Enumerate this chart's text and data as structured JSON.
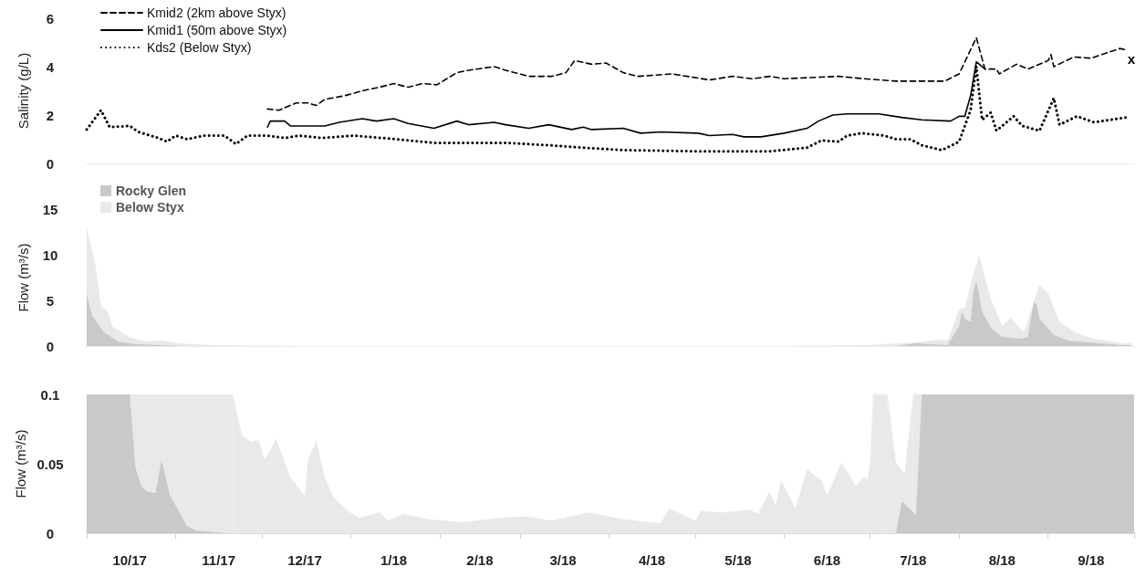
{
  "chart_data": [
    {
      "type": "line",
      "ylabel": "Salinity (g/L)",
      "xlim": [
        "2017-10-01",
        "2018-10-01"
      ],
      "ylim": [
        0,
        6
      ],
      "yticks": [
        0,
        2,
        4,
        6
      ],
      "tick_labels": "y",
      "legend": "top left",
      "annotations": [
        "x"
      ],
      "series": [
        {
          "name": "Kmid2 (2km above Styx)",
          "color": "#000000",
          "line_style": "dashed",
          "x": [
            "2017-12-03",
            "2017-12-07",
            "2017-12-13",
            "2017-12-17",
            "2017-12-20",
            "2017-12-23",
            "2017-12-30",
            "2018-01-05",
            "2018-01-11",
            "2018-01-16",
            "2018-01-21",
            "2018-01-26",
            "2018-01-31",
            "2018-02-07",
            "2018-02-11",
            "2018-02-20",
            "2018-02-24",
            "2018-03-04",
            "2018-03-12",
            "2018-03-17",
            "2018-03-20",
            "2018-03-26",
            "2018-03-31",
            "2018-04-06",
            "2018-04-11",
            "2018-04-23",
            "2018-05-06",
            "2018-05-14",
            "2018-05-21",
            "2018-05-27",
            "2018-06-01",
            "2018-06-20",
            "2018-06-29",
            "2018-07-10",
            "2018-07-27",
            "2018-08-01",
            "2018-08-07",
            "2018-08-10",
            "2018-08-14",
            "2018-08-15",
            "2018-08-21",
            "2018-08-25",
            "2018-09-01",
            "2018-09-02",
            "2018-09-03",
            "2018-09-10",
            "2018-09-16",
            "2018-09-26",
            "2018-09-28"
          ],
          "values": [
            2.25,
            2.2,
            2.5,
            2.5,
            2.4,
            2.65,
            2.8,
            3.0,
            3.15,
            3.3,
            3.15,
            3.3,
            3.25,
            3.75,
            3.85,
            4.0,
            3.85,
            3.6,
            3.6,
            3.75,
            4.25,
            4.1,
            4.15,
            3.75,
            3.6,
            3.7,
            3.45,
            3.6,
            3.5,
            3.6,
            3.5,
            3.6,
            3.5,
            3.4,
            3.4,
            3.7,
            5.2,
            3.9,
            3.9,
            3.7,
            4.1,
            3.9,
            4.25,
            4.5,
            4.0,
            4.4,
            4.35,
            4.75,
            4.7
          ]
        },
        {
          "name": "Kmid1 (50m above Styx)",
          "color": "#000000",
          "line_style": "solid",
          "x": [
            "2017-12-03",
            "2017-12-04",
            "2017-12-09",
            "2017-12-11",
            "2017-12-23",
            "2017-12-28",
            "2018-01-05",
            "2018-01-10",
            "2018-01-16",
            "2018-01-21",
            "2018-01-30",
            "2018-02-07",
            "2018-02-11",
            "2018-02-20",
            "2018-02-24",
            "2018-03-04",
            "2018-03-11",
            "2018-03-19",
            "2018-03-23",
            "2018-03-26",
            "2018-04-06",
            "2018-04-12",
            "2018-04-19",
            "2018-05-02",
            "2018-05-06",
            "2018-05-14",
            "2018-05-18",
            "2018-05-24",
            "2018-06-01",
            "2018-06-09",
            "2018-06-13",
            "2018-06-18",
            "2018-06-23",
            "2018-07-04",
            "2018-07-12",
            "2018-07-19",
            "2018-07-29",
            "2018-08-01",
            "2018-08-03",
            "2018-08-05",
            "2018-08-07",
            "2018-08-10"
          ],
          "values": [
            1.5,
            1.75,
            1.75,
            1.55,
            1.55,
            1.7,
            1.85,
            1.75,
            1.85,
            1.65,
            1.45,
            1.75,
            1.6,
            1.7,
            1.6,
            1.45,
            1.6,
            1.4,
            1.5,
            1.4,
            1.45,
            1.25,
            1.3,
            1.25,
            1.15,
            1.2,
            1.1,
            1.1,
            1.25,
            1.45,
            1.75,
            2.0,
            2.05,
            2.05,
            1.9,
            1.8,
            1.75,
            1.95,
            1.95,
            2.8,
            4.2,
            3.9
          ]
        },
        {
          "name": "Kds2 (Below Styx)",
          "color": "#000000",
          "line_style": "dotted",
          "x": [
            "2017-10-01",
            "2017-10-06",
            "2017-10-09",
            "2017-10-16",
            "2017-10-19",
            "2017-10-26",
            "2017-10-29",
            "2017-11-01",
            "2017-11-05",
            "2017-11-11",
            "2017-11-18",
            "2017-11-22",
            "2017-11-26",
            "2017-12-03",
            "2017-12-09",
            "2017-12-14",
            "2017-12-22",
            "2018-01-02",
            "2018-01-12",
            "2018-01-17",
            "2018-01-30",
            "2018-02-11",
            "2018-02-24",
            "2018-03-11",
            "2018-03-23",
            "2018-04-06",
            "2018-05-02",
            "2018-05-27",
            "2018-06-09",
            "2018-06-14",
            "2018-06-20",
            "2018-06-23",
            "2018-06-28",
            "2018-07-06",
            "2018-07-10",
            "2018-07-15",
            "2018-07-19",
            "2018-07-26",
            "2018-08-01",
            "2018-08-05",
            "2018-08-07",
            "2018-08-09",
            "2018-08-12",
            "2018-08-14",
            "2018-08-20",
            "2018-08-23",
            "2018-08-29",
            "2018-09-03",
            "2018-09-05",
            "2018-09-11",
            "2018-09-17",
            "2018-09-28"
          ],
          "values": [
            1.4,
            2.2,
            1.5,
            1.55,
            1.3,
            1.05,
            0.9,
            1.15,
            1.0,
            1.15,
            1.15,
            0.8,
            1.15,
            1.15,
            1.05,
            1.15,
            1.05,
            1.15,
            1.05,
            1.0,
            0.85,
            0.85,
            0.85,
            0.75,
            0.65,
            0.55,
            0.5,
            0.5,
            0.65,
            0.95,
            0.9,
            1.15,
            1.25,
            1.15,
            1.0,
            1.0,
            0.75,
            0.55,
            0.9,
            2.2,
            4.0,
            1.8,
            2.1,
            1.35,
            1.95,
            1.55,
            1.35,
            2.7,
            1.6,
            1.95,
            1.7,
            1.9
          ]
        }
      ]
    },
    {
      "type": "area",
      "ylabel": "Flow (m³/s)",
      "xlim": [
        "2017-10-01",
        "2018-10-01"
      ],
      "ylim": [
        0,
        15
      ],
      "yticks": [
        0,
        5,
        10,
        15
      ],
      "tick_labels": "y",
      "legend": "top left",
      "series": [
        {
          "name": "Rocky Glen",
          "color": "#c9c9c9",
          "x": [
            "2017-10-01",
            "2017-10-03",
            "2017-10-07",
            "2017-10-12",
            "2017-10-18",
            "2017-11-05",
            "2018-07-10",
            "2018-07-17",
            "2018-07-28",
            "2018-08-01",
            "2018-08-02",
            "2018-08-03",
            "2018-08-05",
            "2018-08-06",
            "2018-08-07",
            "2018-08-09",
            "2018-08-12",
            "2018-08-16",
            "2018-08-23",
            "2018-08-25",
            "2018-08-27",
            "2018-08-28",
            "2018-08-29",
            "2018-09-03",
            "2018-09-08",
            "2018-09-15",
            "2018-09-27",
            "2018-09-30"
          ],
          "values": [
            5.7,
            3.3,
            1.5,
            0.5,
            0.2,
            0,
            0,
            0.3,
            0.1,
            2.2,
            3.8,
            3.0,
            2.6,
            6.0,
            7.2,
            3.8,
            2.0,
            1.0,
            0.8,
            1.0,
            4.8,
            4.6,
            3.0,
            1.2,
            0.6,
            0.4,
            0.1,
            0.1
          ]
        },
        {
          "name": "Below Styx",
          "color": "#e9e9e9",
          "x": [
            "2017-10-01",
            "2017-10-04",
            "2017-10-06",
            "2017-10-08",
            "2017-10-10",
            "2017-10-16",
            "2017-10-21",
            "2017-10-27",
            "2017-11-02",
            "2017-11-13",
            "2017-12-15",
            "2018-06-01",
            "2018-06-29",
            "2018-07-17",
            "2018-07-25",
            "2018-07-28",
            "2018-08-01",
            "2018-08-03",
            "2018-08-06",
            "2018-08-08",
            "2018-08-12",
            "2018-08-16",
            "2018-08-19",
            "2018-08-23",
            "2018-08-24",
            "2018-08-28",
            "2018-08-29",
            "2018-09-01",
            "2018-09-05",
            "2018-09-11",
            "2018-09-17",
            "2018-09-27",
            "2018-09-30"
          ],
          "values": [
            13.0,
            9.0,
            4.3,
            4.0,
            2.1,
            1.0,
            0.5,
            0.6,
            0.3,
            0.1,
            0,
            0,
            0.1,
            0.4,
            0.7,
            0.6,
            4.0,
            4.2,
            8.0,
            9.9,
            5.2,
            2.2,
            3.1,
            1.7,
            1.8,
            5.8,
            6.7,
            5.8,
            2.6,
            1.4,
            0.8,
            0.3,
            0.3
          ]
        }
      ]
    },
    {
      "type": "area",
      "ylabel": "Flow (m³/s)",
      "xlim": [
        "2017-10-01",
        "2018-10-01"
      ],
      "ylim": [
        0,
        0.1
      ],
      "yticks": [
        0,
        0.05,
        0.1
      ],
      "xticks": [
        {
          "value": "2017-10-01",
          "label": null
        },
        {
          "value": "2017-11-01",
          "label": null
        },
        {
          "value": "2017-12-01",
          "label": null
        },
        {
          "value": "2018-01-01",
          "label": null
        },
        {
          "value": "2018-02-01",
          "label": null
        },
        {
          "value": "2018-03-01",
          "label": null
        },
        {
          "value": "2018-04-01",
          "label": null
        },
        {
          "value": "2018-05-01",
          "label": null
        },
        {
          "value": "2018-06-01",
          "label": null
        },
        {
          "value": "2018-07-01",
          "label": null
        },
        {
          "value": "2018-08-01",
          "label": null
        },
        {
          "value": "2018-09-01",
          "label": null
        },
        {
          "value": "2018-10-01",
          "label": null
        },
        {
          "value": "2017-10-16",
          "label": "10/17"
        },
        {
          "value": "2017-11-16",
          "label": "11/17"
        },
        {
          "value": "2017-12-16",
          "label": "12/17"
        },
        {
          "value": "2018-01-16",
          "label": "1/18"
        },
        {
          "value": "2018-02-15",
          "label": "2/18"
        },
        {
          "value": "2018-03-16",
          "label": "3/18"
        },
        {
          "value": "2018-04-16",
          "label": "4/18"
        },
        {
          "value": "2018-05-16",
          "label": "5/18"
        },
        {
          "value": "2018-06-16",
          "label": "6/18"
        },
        {
          "value": "2018-07-16",
          "label": "7/18"
        },
        {
          "value": "2018-08-16",
          "label": "8/18"
        },
        {
          "value": "2018-09-16",
          "label": "9/18"
        }
      ],
      "bands": [
        {
          "axis": "x",
          "from": "2017-10-01",
          "to": "2017-11-21",
          "color": "#e9e9e9"
        },
        {
          "axis": "x",
          "from": "2018-07-02",
          "to": "2018-07-07",
          "color": "#e9e9e9"
        },
        {
          "axis": "x",
          "from": "2018-07-16",
          "to": "2018-10-01",
          "color": "#e9e9e9"
        },
        {
          "axis": "x",
          "from": "2017-10-01",
          "to": "2017-10-16",
          "color": "#c9c9c9"
        },
        {
          "axis": "x",
          "from": "2018-07-19",
          "to": "2018-10-01",
          "color": "#c9c9c9"
        }
      ],
      "series": [
        {
          "color": "#c9c9c9",
          "x": [
            "2017-10-16",
            "2017-10-18",
            "2017-10-20",
            "2017-10-22",
            "2017-10-25",
            "2017-10-27",
            "2017-10-28",
            "2017-10-30",
            "2017-11-01",
            "2017-11-05",
            "2017-11-08",
            "2017-11-19",
            "2018-07-10",
            "2018-07-12",
            "2018-07-17",
            "2018-07-19"
          ],
          "values": [
            0.1,
            0.047,
            0.034,
            0.03,
            0.029,
            0.052,
            0.045,
            0.027,
            0.02,
            0.005,
            0.002,
            0,
            0,
            0.023,
            0.013,
            0.1
          ]
        },
        {
          "color": "#e9e9e9",
          "x": [
            "2017-11-21",
            "2017-11-24",
            "2017-11-27",
            "2017-11-30",
            "2017-12-02",
            "2017-12-06",
            "2017-12-11",
            "2017-12-16",
            "2017-12-17",
            "2017-12-20",
            "2017-12-23",
            "2017-12-26",
            "2017-12-31",
            "2018-01-04",
            "2018-01-11",
            "2018-01-14",
            "2018-01-19",
            "2018-01-28",
            "2018-02-09",
            "2018-02-22",
            "2018-03-03",
            "2018-03-12",
            "2018-03-25",
            "2018-04-06",
            "2018-04-19",
            "2018-04-22",
            "2018-05-01",
            "2018-05-03",
            "2018-05-11",
            "2018-05-20",
            "2018-05-23",
            "2018-05-27",
            "2018-05-29",
            "2018-05-31",
            "2018-06-05",
            "2018-06-09",
            "2018-06-14",
            "2018-06-16",
            "2018-06-21",
            "2018-06-26",
            "2018-06-29",
            "2018-06-30",
            "2018-07-01",
            "2018-07-02",
            "2018-07-04",
            "2018-07-07",
            "2018-07-10",
            "2018-07-13",
            "2018-07-16"
          ],
          "values": [
            0.1,
            0.071,
            0.066,
            0.067,
            0.053,
            0.068,
            0.04,
            0.027,
            0.052,
            0.067,
            0.04,
            0.026,
            0.016,
            0.011,
            0.015,
            0.009,
            0.014,
            0.01,
            0.008,
            0.011,
            0.012,
            0.009,
            0.015,
            0.01,
            0.007,
            0.018,
            0.009,
            0.016,
            0.015,
            0.017,
            0.014,
            0.03,
            0.02,
            0.038,
            0.018,
            0.046,
            0.038,
            0.027,
            0.051,
            0.034,
            0.041,
            0.038,
            0.05,
            0.1,
            null,
            0.1,
            0.051,
            0.043,
            0.1
          ]
        }
      ]
    }
  ]
}
